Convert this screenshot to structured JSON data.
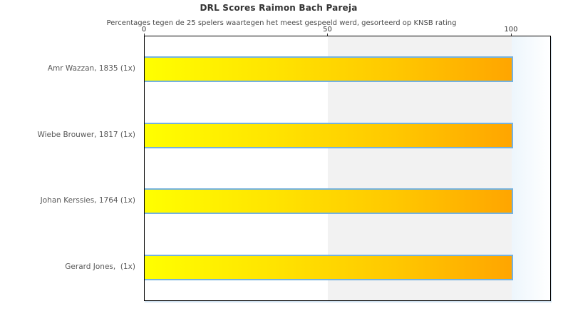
{
  "chart_data": {
    "type": "bar",
    "orientation": "horizontal",
    "title": "DRL Scores Raimon Bach Pareja",
    "subtitle": "Percentages tegen de 25 spelers waartegen het meest gespeeld werd, gesorteerd op KNSB rating",
    "categories": [
      "Amr Wazzan, 1835 (1x)",
      "Wiebe Brouwer, 1817 (1x)",
      "Johan Kerssies, 1764 (1x)",
      "Gerard Jones,  (1x)"
    ],
    "values": [
      100,
      100,
      100,
      100
    ],
    "x_ticks": [
      0,
      50,
      100
    ],
    "xlim": [
      0,
      110.5
    ],
    "grid": false,
    "legend": "none",
    "layout_hints": {
      "shaded_region_x": [
        50,
        100
      ],
      "overflow_region_x": [
        100,
        110.5
      ]
    },
    "colors": {
      "bar_gradient_start": "#ffff00",
      "bar_gradient_end": "#ffa500",
      "bar_border": "#74b2e0",
      "band_50_100": "#f2f2f2",
      "band_overflow": "#edf6fc",
      "plot_border": "#000000",
      "title_color": "#333333",
      "label_color": "#595959"
    }
  }
}
